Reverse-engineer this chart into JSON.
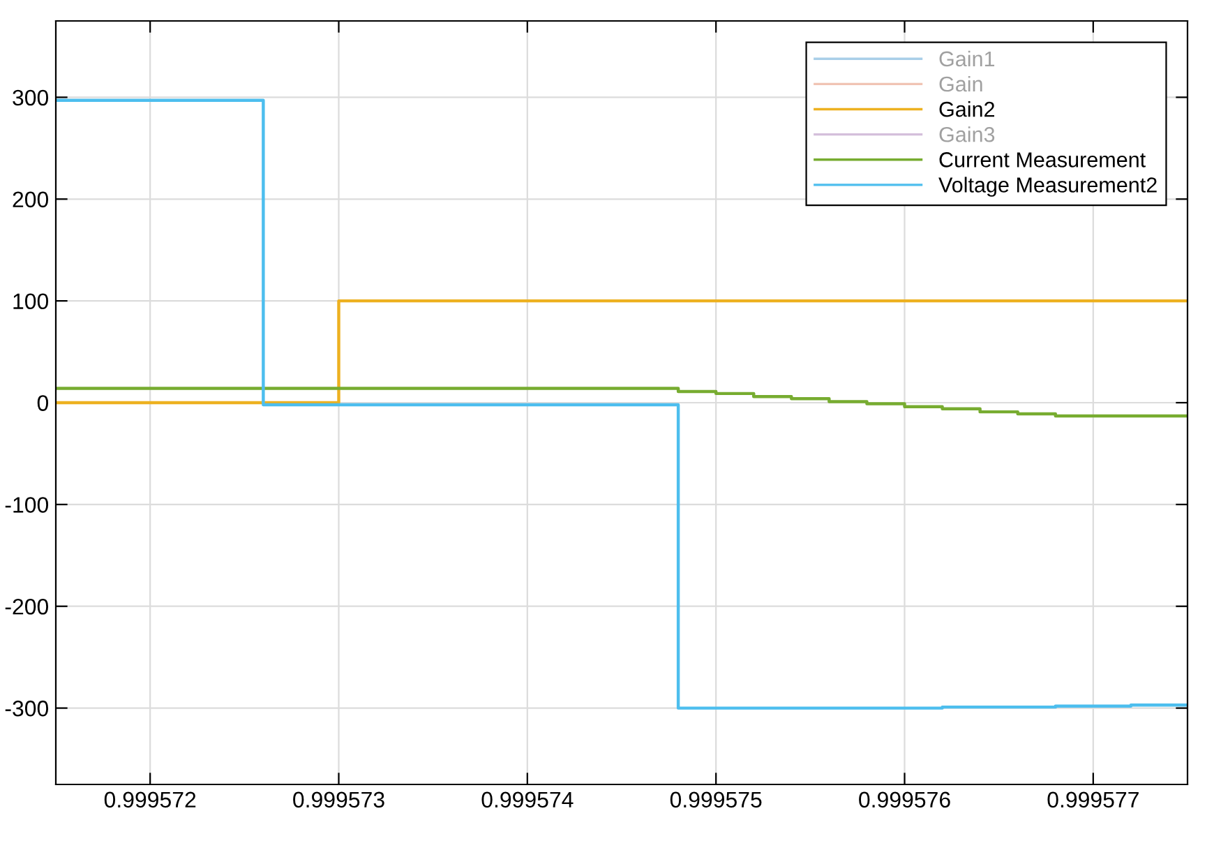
{
  "chart_data": {
    "type": "step",
    "xlim": [
      0.9995715,
      0.9995775
    ],
    "ylim": [
      -375,
      375
    ],
    "xticks": [
      0.999572,
      0.999573,
      0.999574,
      0.999575,
      0.999576,
      0.999577
    ],
    "yticks": [
      -300,
      -200,
      -100,
      0,
      100,
      200,
      300
    ],
    "grid": true,
    "legend": "top right",
    "series": [
      {
        "name": "Gain1",
        "color": "#a9cfe8"
      },
      {
        "name": "Gain",
        "color": "#f0c4b4"
      },
      {
        "name": "Gain2",
        "color": "#edb120",
        "x": [
          0.9995715,
          0.999573,
          0.9995775
        ],
        "values": [
          0,
          100,
          100
        ]
      },
      {
        "name": "Gain3",
        "color": "#d4bfdb"
      },
      {
        "name": "Current Measurement",
        "color": "#77ac30",
        "x": [
          0.9995715,
          0.9995748,
          0.999575,
          0.9995752,
          0.9995754,
          0.9995756,
          0.9995758,
          0.999576,
          0.9995762,
          0.9995764,
          0.9995766,
          0.9995768,
          0.999577,
          0.9995775
        ],
        "values": [
          14,
          11,
          9,
          6,
          4,
          1,
          -1,
          -4,
          -6,
          -9,
          -11,
          -13,
          -13,
          -13
        ]
      },
      {
        "name": "Voltage Measurement2",
        "color": "#4dbeee",
        "x": [
          0.9995715,
          0.9995726,
          0.9995748,
          0.9995762,
          0.9995768,
          0.9995772,
          0.9995775
        ],
        "values": [
          297,
          -2,
          -300,
          -299,
          -298,
          -297,
          -297
        ]
      }
    ]
  }
}
